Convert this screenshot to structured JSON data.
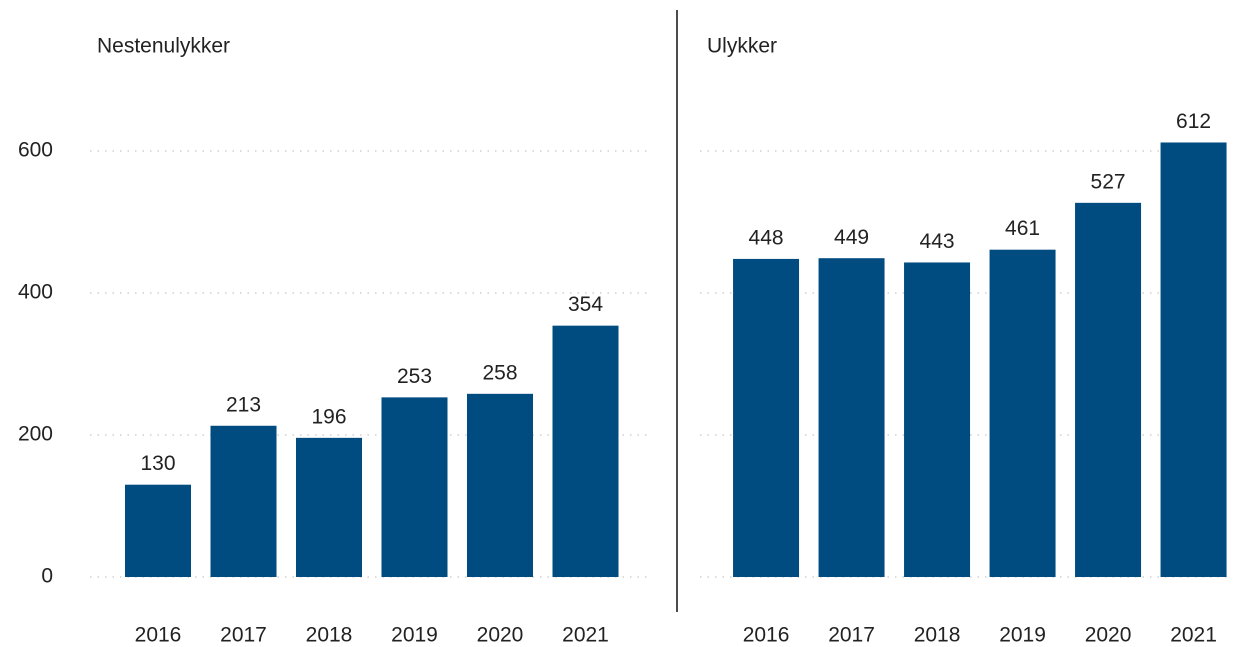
{
  "chart_data": [
    {
      "type": "bar",
      "title": "Nestenulykker",
      "categories": [
        "2016",
        "2017",
        "2018",
        "2019",
        "2020",
        "2021"
      ],
      "values": [
        130,
        213,
        196,
        253,
        258,
        354
      ],
      "color": "#004b80",
      "ylim": [
        0,
        700
      ],
      "yticks": [
        0,
        200,
        400,
        600
      ],
      "grid": true
    },
    {
      "type": "bar",
      "title": "Ulykker",
      "categories": [
        "2016",
        "2017",
        "2018",
        "2019",
        "2020",
        "2021"
      ],
      "values": [
        448,
        449,
        443,
        461,
        527,
        612
      ],
      "color": "#004b80",
      "ylim": [
        0,
        700
      ],
      "yticks": [
        0,
        200,
        400,
        600
      ],
      "grid": true
    }
  ]
}
